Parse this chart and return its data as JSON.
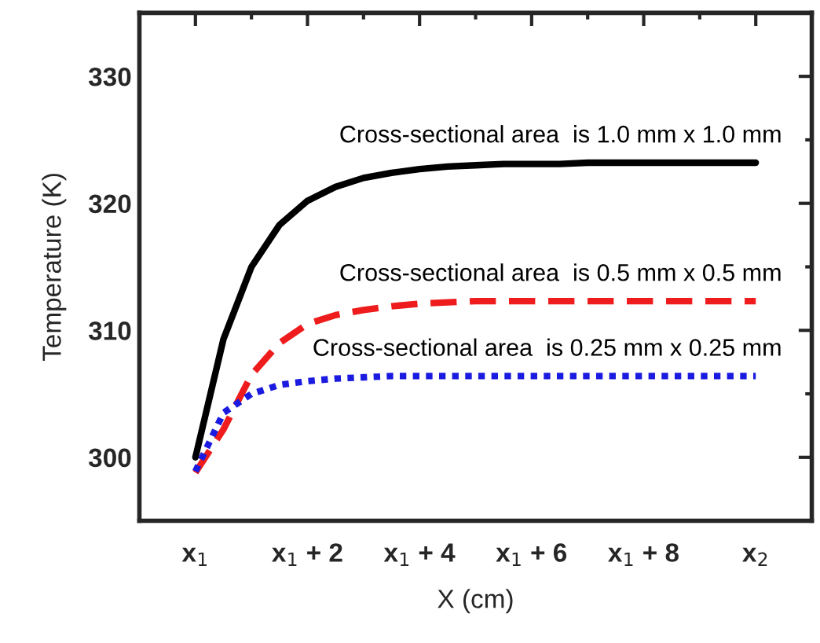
{
  "chart_data": {
    "type": "line",
    "xlabel": "X (cm)",
    "ylabel": "Temperature (K)",
    "categories": [
      "x$_{1}$",
      null,
      null,
      null,
      "x$_{1}$ + 2",
      null,
      null,
      null,
      "x$_{1}$ + 4",
      null,
      null,
      null,
      "x$_{1}$ + 6",
      null,
      null,
      null,
      "x$_{1}$ + 8",
      null,
      null,
      null,
      "x$_{2}$"
    ],
    "ylim": [
      295,
      335
    ],
    "yticks": [
      300,
      310,
      320,
      330
    ],
    "grid": false,
    "legend": false,
    "marker": "none",
    "series": [
      {
        "name": "Cross-sectional area  is 1.0 mm x 1.0 mm",
        "color": "#000000",
        "line_style": "solid",
        "values": [
          300,
          309.3,
          315,
          318.3,
          320.2,
          321.3,
          322,
          322.4,
          322.7,
          322.9,
          323,
          323.1,
          323.1,
          323.1,
          323.2,
          323.2,
          323.2,
          323.2,
          323.2,
          323.2,
          323.2
        ]
      },
      {
        "name": "Cross-sectional area  is 0.5 mm x 0.5 mm",
        "color": "#ee1c1c",
        "line_style": "dashed",
        "values": [
          298.8,
          302.2,
          306.5,
          309,
          310.5,
          311.2,
          311.6,
          311.9,
          312.1,
          312.2,
          312.3,
          312.3,
          312.3,
          312.3,
          312.3,
          312.3,
          312.3,
          312.3,
          312.3,
          312.3,
          312.3
        ]
      },
      {
        "name": "Cross-sectional area  is 0.25 mm x 0.25 mm",
        "color": "#1a1ae0",
        "line_style": "dotted",
        "values": [
          298.9,
          303.5,
          305,
          305.7,
          306,
          306.2,
          306.3,
          306.4,
          306.4,
          306.4,
          306.4,
          306.4,
          306.4,
          306.4,
          306.4,
          306.4,
          306.4,
          306.4,
          306.4,
          306.4,
          306.4
        ]
      }
    ]
  }
}
